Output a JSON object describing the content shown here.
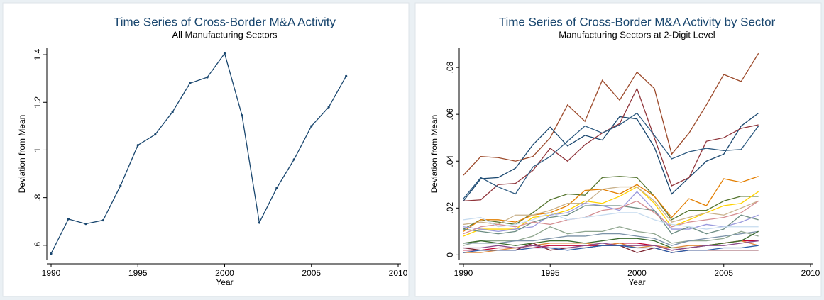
{
  "chart_data": [
    {
      "type": "line",
      "title": "Time Series of Cross-Border M&A Activity",
      "subtitle": "All Manufacturing Sectors",
      "xlabel": "Year",
      "ylabel": "Deviation from Mean",
      "markers": true,
      "color": "#1a476f",
      "x": [
        1990,
        1991,
        1992,
        1993,
        1994,
        1995,
        1996,
        1997,
        1998,
        1999,
        2000,
        2001,
        2002,
        2003,
        2004,
        2005,
        2006,
        2007
      ],
      "values": [
        0.565,
        0.71,
        0.69,
        0.705,
        0.85,
        1.02,
        1.065,
        1.16,
        1.28,
        1.305,
        1.405,
        1.145,
        0.695,
        0.84,
        0.96,
        1.1,
        1.18,
        1.31
      ],
      "xlim": [
        1990,
        2010
      ],
      "xticks": [
        1990,
        1995,
        2000,
        2005,
        2010
      ],
      "ylim": [
        0.54,
        1.427
      ],
      "yticks": [
        {
          "value": 0.6,
          "label": ".6"
        },
        {
          "value": 0.8,
          "label": ".8"
        },
        1,
        1.2,
        1.4
      ]
    },
    {
      "type": "line",
      "title": "Time Series of Cross-Border M&A Activity by Sector",
      "subtitle": "Manufacturing Sectors at 2-Digit Level",
      "xlabel": "Year",
      "ylabel": "Deviation from Mean",
      "markers": false,
      "x": [
        1990,
        1991,
        1992,
        1993,
        1994,
        1995,
        1996,
        1997,
        1998,
        1999,
        2000,
        2001,
        2002,
        2003,
        2004,
        2005,
        2006,
        2007
      ],
      "series": [
        {
          "color": "#9c4a2b",
          "values": [
            0.034,
            0.042,
            0.0415,
            0.04,
            0.042,
            0.05,
            0.064,
            0.057,
            0.0745,
            0.066,
            0.078,
            0.071,
            0.043,
            0.052,
            0.064,
            0.077,
            0.074,
            0.086
          ]
        },
        {
          "color": "#1a476f",
          "values": [
            0.023,
            0.0325,
            0.033,
            0.037,
            0.047,
            0.0545,
            0.0465,
            0.051,
            0.049,
            0.059,
            0.058,
            0.046,
            0.026,
            0.033,
            0.04,
            0.043,
            0.055,
            0.0605
          ]
        },
        {
          "color": "#90353b",
          "values": [
            0.023,
            0.0235,
            0.03,
            0.0305,
            0.036,
            0.0455,
            0.04,
            0.047,
            0.052,
            0.056,
            0.071,
            0.05,
            0.0295,
            0.033,
            0.0485,
            0.05,
            0.054,
            0.0555
          ]
        },
        {
          "color": "#2d5a80",
          "values": [
            0.024,
            0.033,
            0.029,
            0.026,
            0.0375,
            0.042,
            0.0485,
            0.055,
            0.052,
            0.0555,
            0.0605,
            0.051,
            0.041,
            0.044,
            0.0455,
            0.0445,
            0.045,
            0.055
          ]
        },
        {
          "color": "#55752f",
          "values": [
            0.011,
            0.015,
            0.014,
            0.013,
            0.018,
            0.0235,
            0.026,
            0.0255,
            0.033,
            0.0335,
            0.033,
            0.025,
            0.015,
            0.019,
            0.019,
            0.023,
            0.025,
            0.025
          ]
        },
        {
          "color": "#e37e00",
          "values": [
            0.01,
            0.015,
            0.015,
            0.014,
            0.017,
            0.018,
            0.021,
            0.0275,
            0.028,
            0.026,
            0.03,
            0.025,
            0.016,
            0.024,
            0.021,
            0.0325,
            0.031,
            0.0335
          ]
        },
        {
          "color": "#ffd200",
          "values": [
            0.008,
            0.011,
            0.011,
            0.011,
            0.016,
            0.017,
            0.019,
            0.023,
            0.022,
            0.025,
            0.029,
            0.022,
            0.012,
            0.015,
            0.018,
            0.021,
            0.022,
            0.027
          ]
        },
        {
          "color": "#c9b28c",
          "values": [
            0.013,
            0.014,
            0.013,
            0.017,
            0.017,
            0.019,
            0.022,
            0.022,
            0.028,
            0.029,
            0.029,
            0.023,
            0.014,
            0.016,
            0.018,
            0.017,
            0.02,
            0.023
          ]
        },
        {
          "color": "#9999dd",
          "values": [
            0.012,
            0.011,
            0.01,
            0.011,
            0.012,
            0.017,
            0.018,
            0.022,
            0.021,
            0.019,
            0.027,
            0.019,
            0.011,
            0.011,
            0.013,
            0.012,
            0.014,
            0.017
          ]
        },
        {
          "color": "#6e8e84",
          "values": [
            0.011,
            0.01,
            0.009,
            0.01,
            0.014,
            0.016,
            0.017,
            0.021,
            0.021,
            0.021,
            0.02,
            0.019,
            0.009,
            0.012,
            0.009,
            0.011,
            0.017,
            0.015
          ]
        },
        {
          "color": "#d58f93",
          "values": [
            0.009,
            0.012,
            0.013,
            0.012,
            0.014,
            0.013,
            0.015,
            0.016,
            0.019,
            0.02,
            0.023,
            0.018,
            0.012,
            0.014,
            0.015,
            0.016,
            0.018,
            0.023
          ]
        },
        {
          "color": "#8fa68f",
          "values": [
            0.004,
            0.006,
            0.006,
            0.006,
            0.008,
            0.012,
            0.009,
            0.01,
            0.01,
            0.012,
            0.01,
            0.009,
            0.005,
            0.006,
            0.006,
            0.007,
            0.01,
            0.008
          ]
        },
        {
          "color": "#7b92a8",
          "values": [
            0.005,
            0.005,
            0.005,
            0.006,
            0.006,
            0.007,
            0.008,
            0.008,
            0.009,
            0.009,
            0.008,
            0.007,
            0.004,
            0.006,
            0.007,
            0.008,
            0.009,
            0.01
          ]
        },
        {
          "color": "#c10534",
          "values": [
            0.002,
            0.002,
            0.003,
            0.003,
            0.003,
            0.004,
            0.004,
            0.004,
            0.004,
            0.005,
            0.005,
            0.004,
            0.002,
            0.003,
            0.004,
            0.005,
            0.006,
            0.006
          ]
        },
        {
          "color": "#7a1f2b",
          "values": [
            0.003,
            0.002,
            0.002,
            0.002,
            0.005,
            0.002,
            0.003,
            0.003,
            0.004,
            0.004,
            0.001,
            0.003,
            0.001,
            0.002,
            0.002,
            0.002,
            0.002,
            0.002
          ]
        },
        {
          "color": "#e08a3a",
          "values": [
            0.001,
            0.001,
            0.002,
            0.003,
            0.004,
            0.005,
            0.005,
            0.005,
            0.004,
            0.005,
            0.003,
            0.004,
            0.003,
            0.004,
            0.004,
            0.005,
            0.006,
            0.004
          ]
        },
        {
          "color": "#c6dbef",
          "values": [
            0.015,
            0.016,
            0.012,
            0.013,
            0.015,
            0.018,
            0.015,
            0.016,
            0.017,
            0.018,
            0.018,
            0.015,
            0.013,
            0.012,
            0.011,
            0.012,
            0.012,
            0.012
          ]
        },
        {
          "color": "#3a6b2e",
          "values": [
            0.005,
            0.006,
            0.005,
            0.004,
            0.005,
            0.006,
            0.006,
            0.005,
            0.006,
            0.007,
            0.007,
            0.006,
            0.003,
            0.003,
            0.004,
            0.005,
            0.006,
            0.01
          ]
        },
        {
          "color": "#8b4a8b",
          "values": [
            0.003,
            0.003,
            0.004,
            0.003,
            0.004,
            0.003,
            0.003,
            0.004,
            0.005,
            0.004,
            0.004,
            0.004,
            0.002,
            0.003,
            0.004,
            0.004,
            0.005,
            0.006
          ]
        },
        {
          "color": "#2b5da8",
          "values": [
            0.001,
            0.002,
            0.002,
            0.002,
            0.003,
            0.003,
            0.002,
            0.003,
            0.004,
            0.004,
            0.003,
            0.003,
            0.001,
            0.002,
            0.002,
            0.003,
            0.003,
            0.004
          ]
        }
      ],
      "xlim": [
        1990,
        2010
      ],
      "xticks": [
        1990,
        1995,
        2000,
        2005,
        2010
      ],
      "ylim": [
        -0.002,
        0.0882
      ],
      "yticks": [
        0,
        {
          "value": 0.02,
          "label": ".02"
        },
        {
          "value": 0.04,
          "label": ".04"
        },
        {
          "value": 0.06,
          "label": ".06"
        },
        {
          "value": 0.08,
          "label": ".08"
        }
      ]
    }
  ]
}
